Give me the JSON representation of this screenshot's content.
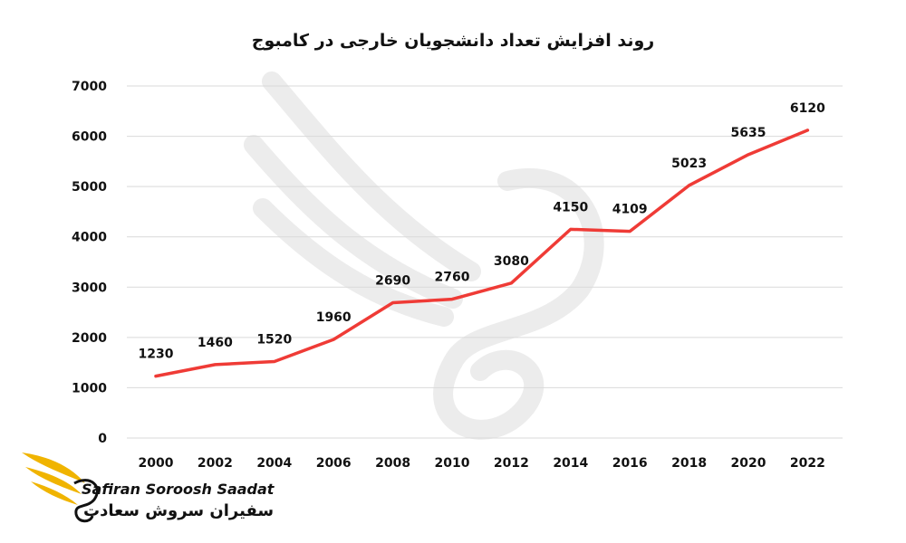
{
  "chart_data": {
    "type": "line",
    "title": "روند افزایش تعداد دانشجویان خارجی در کامبوج",
    "x": [
      "2000",
      "2002",
      "2004",
      "2006",
      "2008",
      "2010",
      "2012",
      "2014",
      "2016",
      "2018",
      "2020",
      "2022"
    ],
    "series": [
      {
        "values": [
          1230,
          1460,
          1520,
          1960,
          2690,
          2760,
          3080,
          4150,
          4109,
          5023,
          5635,
          6120
        ],
        "color": "#ef3b36"
      }
    ],
    "ylim": [
      0,
      7000
    ],
    "yticks": [
      0,
      1000,
      2000,
      3000,
      4000,
      5000,
      6000,
      7000
    ],
    "grid": true,
    "data_labels": true
  },
  "watermark": {
    "icon": "bird-wing-icon"
  },
  "brand": {
    "name_en": "Safiran Soroosh Saadat",
    "name_fa": "سفیران سروش سعادت",
    "logo_icon": "wing-logo-icon",
    "logo_color": "#f0b400"
  }
}
